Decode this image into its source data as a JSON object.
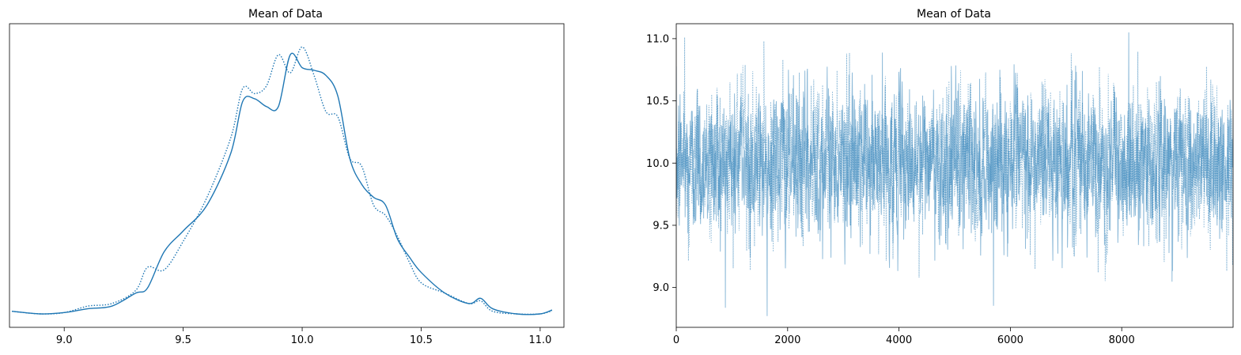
{
  "colors": {
    "line": "#1f77b4",
    "trace": "#1f77b4"
  },
  "chart_data": [
    {
      "type": "line",
      "title": "Mean of Data",
      "xlabel": "",
      "ylabel": "",
      "xlim": [
        8.77,
        11.1
      ],
      "ylim": [
        0,
        1.08
      ],
      "x_ticks": [
        "9.0",
        "9.5",
        "10.0",
        "10.5",
        "11.0"
      ],
      "y_ticks": [],
      "grid": false,
      "series": [
        {
          "style": "solid",
          "x": [
            8.78,
            8.9,
            9.0,
            9.1,
            9.2,
            9.3,
            9.35,
            9.42,
            9.5,
            9.6,
            9.7,
            9.75,
            9.8,
            9.85,
            9.9,
            9.95,
            10.0,
            10.05,
            10.1,
            10.15,
            10.2,
            10.25,
            10.3,
            10.35,
            10.4,
            10.45,
            10.5,
            10.6,
            10.7,
            10.75,
            10.8,
            10.9,
            11.0,
            11.05
          ],
          "y": [
            0.01,
            0.0,
            0.005,
            0.02,
            0.03,
            0.08,
            0.1,
            0.24,
            0.32,
            0.42,
            0.62,
            0.82,
            0.83,
            0.8,
            0.8,
            1.0,
            0.95,
            0.94,
            0.92,
            0.84,
            0.6,
            0.5,
            0.45,
            0.42,
            0.29,
            0.22,
            0.16,
            0.08,
            0.04,
            0.06,
            0.02,
            0.0,
            0.0,
            0.015
          ]
        },
        {
          "style": "dotted",
          "x": [
            8.78,
            8.9,
            9.0,
            9.1,
            9.2,
            9.3,
            9.35,
            9.42,
            9.5,
            9.6,
            9.7,
            9.75,
            9.8,
            9.85,
            9.9,
            9.95,
            10.0,
            10.05,
            10.1,
            10.15,
            10.2,
            10.25,
            10.3,
            10.35,
            10.4,
            10.45,
            10.5,
            10.6,
            10.7,
            10.75,
            10.8,
            10.9,
            11.0,
            11.05
          ],
          "y": [
            0.01,
            0.0,
            0.005,
            0.03,
            0.04,
            0.09,
            0.18,
            0.17,
            0.28,
            0.45,
            0.68,
            0.87,
            0.85,
            0.88,
            1.0,
            0.93,
            1.03,
            0.92,
            0.78,
            0.76,
            0.6,
            0.57,
            0.42,
            0.38,
            0.3,
            0.2,
            0.12,
            0.08,
            0.04,
            0.05,
            0.01,
            0.0,
            0.0,
            0.012
          ]
        }
      ]
    },
    {
      "type": "line",
      "title": "Mean of Data",
      "xlabel": "",
      "ylabel": "",
      "xlim": [
        0,
        10000
      ],
      "ylim": [
        8.68,
        11.12
      ],
      "x_ticks": [
        "0",
        "2000",
        "4000",
        "6000",
        "8000"
      ],
      "y_ticks": [
        "9.0",
        "9.5",
        "10.0",
        "10.5",
        "11.0"
      ],
      "grid": false,
      "series_description": "two MCMC trace series (solid, dotted), ~10000 draws each, fluctuating around 10.0 between ~8.77 and ~11.05",
      "series": [
        {
          "style": "solid",
          "mean": 10.0,
          "sd": 0.28,
          "n": 10000,
          "min": 8.77,
          "max": 11.05
        },
        {
          "style": "dotted",
          "mean": 10.0,
          "sd": 0.28,
          "n": 10000,
          "min": 8.8,
          "max": 11.01
        }
      ]
    }
  ]
}
